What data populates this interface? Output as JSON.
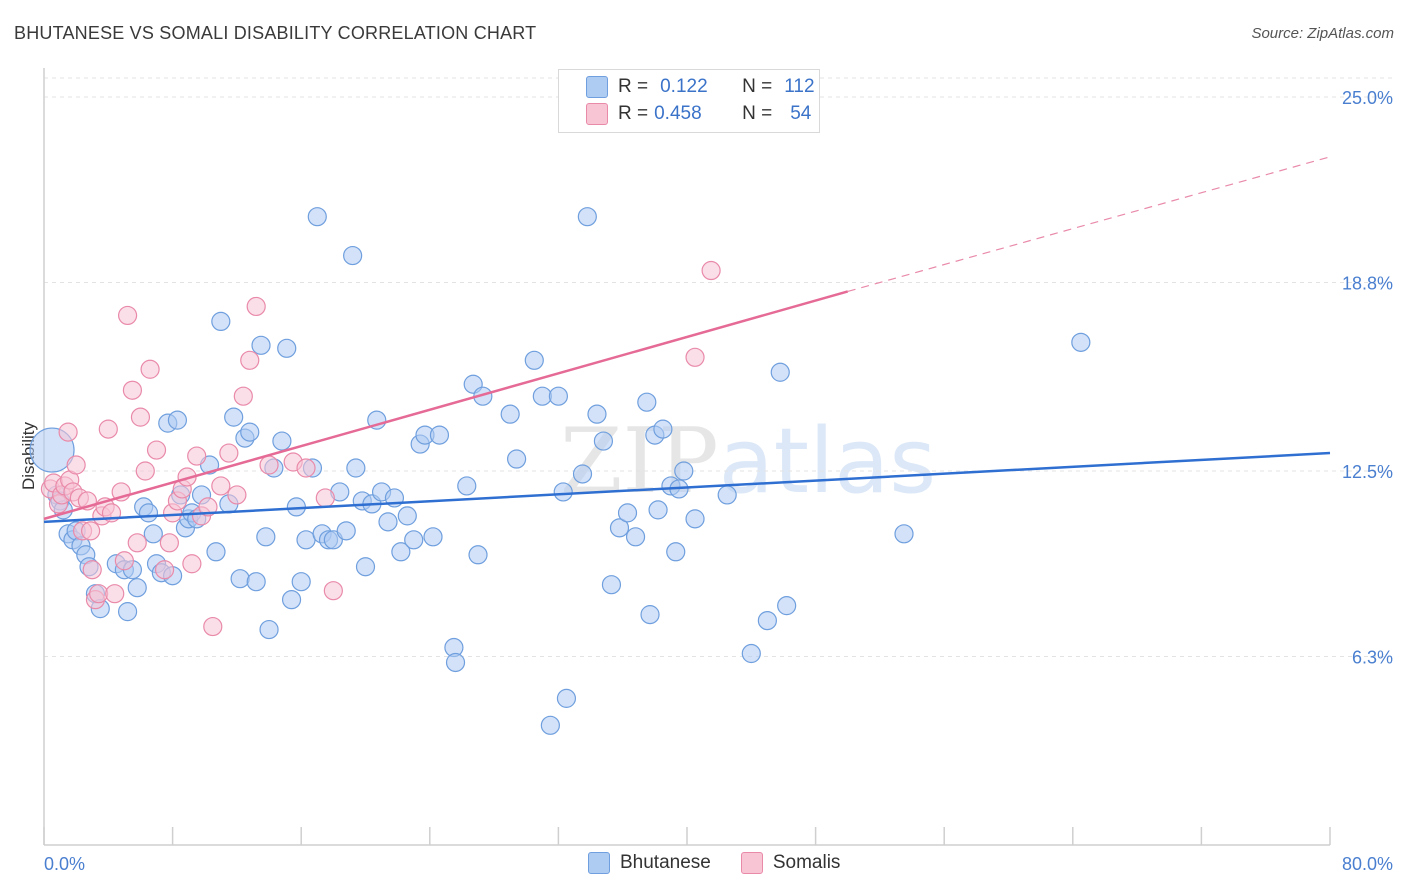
{
  "title": "BHUTANESE VS SOMALI DISABILITY CORRELATION CHART",
  "source": "Source: ZipAtlas.com",
  "watermark": "ZIPatlas",
  "legend": {
    "rows": [
      {
        "r_label": "R =",
        "r_value": "0.122",
        "n_label": "N =",
        "n_value": "112",
        "color": "#aecbf2",
        "border": "#6f9fde"
      },
      {
        "r_label": "R =",
        "r_value": "0.458",
        "n_label": "N =",
        "n_value": "54",
        "color": "#f8c5d5",
        "border": "#e98aa9"
      }
    ]
  },
  "bottom_legend": {
    "items": [
      {
        "label": "Bhutanese",
        "color": "#aecbf2",
        "border": "#6f9fde"
      },
      {
        "label": "Somalis",
        "color": "#f8c5d5",
        "border": "#e98aa9"
      }
    ]
  },
  "chart_data": {
    "type": "scatter",
    "title": "BHUTANESE VS SOMALI DISABILITY CORRELATION CHART",
    "xlabel": "",
    "ylabel": "Disability",
    "xlim": [
      0,
      80
    ],
    "ylim": [
      0,
      26.5
    ],
    "x_tick_labels": [
      "0.0%",
      "80.0%"
    ],
    "y_ticks": [
      6.3,
      12.5,
      18.8,
      25.0
    ],
    "y_tick_labels": [
      "6.3%",
      "12.5%",
      "18.8%",
      "25.0%"
    ],
    "grid": true,
    "series": [
      {
        "name": "Bhutanese",
        "color": "#6f9fde",
        "fill": "#aecbf2",
        "trend": {
          "x0": 0,
          "y0": 10.8,
          "x1": 80,
          "y1": 13.1
        },
        "points": [
          [
            0.5,
            13.2
          ],
          [
            0.8,
            11.7
          ],
          [
            1.0,
            11.5
          ],
          [
            1.2,
            11.2
          ],
          [
            1.5,
            10.4
          ],
          [
            1.8,
            10.2
          ],
          [
            2.0,
            10.5
          ],
          [
            2.3,
            10.0
          ],
          [
            2.6,
            9.7
          ],
          [
            2.8,
            9.3
          ],
          [
            3.2,
            8.4
          ],
          [
            3.5,
            7.9
          ],
          [
            4.5,
            9.4
          ],
          [
            5.0,
            9.2
          ],
          [
            5.2,
            7.8
          ],
          [
            5.5,
            9.2
          ],
          [
            5.8,
            8.6
          ],
          [
            6.2,
            11.3
          ],
          [
            6.5,
            11.1
          ],
          [
            6.8,
            10.4
          ],
          [
            7.0,
            9.4
          ],
          [
            7.3,
            9.1
          ],
          [
            7.7,
            14.1
          ],
          [
            8.0,
            9.0
          ],
          [
            8.3,
            14.2
          ],
          [
            8.5,
            11.7
          ],
          [
            8.8,
            10.6
          ],
          [
            9.0,
            10.9
          ],
          [
            9.2,
            11.1
          ],
          [
            9.5,
            10.9
          ],
          [
            9.8,
            11.7
          ],
          [
            10.3,
            12.7
          ],
          [
            10.7,
            9.8
          ],
          [
            11.0,
            17.5
          ],
          [
            11.5,
            11.4
          ],
          [
            11.8,
            14.3
          ],
          [
            12.2,
            8.9
          ],
          [
            12.5,
            13.6
          ],
          [
            12.8,
            13.8
          ],
          [
            13.2,
            8.8
          ],
          [
            13.5,
            16.7
          ],
          [
            13.8,
            10.3
          ],
          [
            14.0,
            7.2
          ],
          [
            14.3,
            12.6
          ],
          [
            14.8,
            13.5
          ],
          [
            15.1,
            16.6
          ],
          [
            15.4,
            8.2
          ],
          [
            15.7,
            11.3
          ],
          [
            16.0,
            8.8
          ],
          [
            16.3,
            10.2
          ],
          [
            16.7,
            12.6
          ],
          [
            17.0,
            21.0
          ],
          [
            17.3,
            10.4
          ],
          [
            17.7,
            10.2
          ],
          [
            18.0,
            10.2
          ],
          [
            18.4,
            11.8
          ],
          [
            18.8,
            10.5
          ],
          [
            19.2,
            19.7
          ],
          [
            19.4,
            12.6
          ],
          [
            19.8,
            11.5
          ],
          [
            20.0,
            9.3
          ],
          [
            20.4,
            11.4
          ],
          [
            20.7,
            14.2
          ],
          [
            21.0,
            11.8
          ],
          [
            21.4,
            10.8
          ],
          [
            21.8,
            11.6
          ],
          [
            22.2,
            9.8
          ],
          [
            22.6,
            11.0
          ],
          [
            23.0,
            10.2
          ],
          [
            23.4,
            13.4
          ],
          [
            23.7,
            13.7
          ],
          [
            24.2,
            10.3
          ],
          [
            24.6,
            13.7
          ],
          [
            25.5,
            6.6
          ],
          [
            25.6,
            6.1
          ],
          [
            26.3,
            12.0
          ],
          [
            26.7,
            15.4
          ],
          [
            27.0,
            9.7
          ],
          [
            27.3,
            15.0
          ],
          [
            29.0,
            14.4
          ],
          [
            29.4,
            12.9
          ],
          [
            30.5,
            16.2
          ],
          [
            31.0,
            15.0
          ],
          [
            32.0,
            15.0
          ],
          [
            32.3,
            11.8
          ],
          [
            32.5,
            4.9
          ],
          [
            31.5,
            4.0
          ],
          [
            33.5,
            12.4
          ],
          [
            33.8,
            21.0
          ],
          [
            34.4,
            14.4
          ],
          [
            34.8,
            13.5
          ],
          [
            35.3,
            8.7
          ],
          [
            35.8,
            10.6
          ],
          [
            36.3,
            11.1
          ],
          [
            36.8,
            10.3
          ],
          [
            37.5,
            14.8
          ],
          [
            37.7,
            7.7
          ],
          [
            38.0,
            13.7
          ],
          [
            38.2,
            11.2
          ],
          [
            38.5,
            13.9
          ],
          [
            39.0,
            12.0
          ],
          [
            39.3,
            9.8
          ],
          [
            39.5,
            11.9
          ],
          [
            39.8,
            12.5
          ],
          [
            40.5,
            10.9
          ],
          [
            42.5,
            11.7
          ],
          [
            44.0,
            6.4
          ],
          [
            45.0,
            7.5
          ],
          [
            46.2,
            8.0
          ],
          [
            45.8,
            15.8
          ],
          [
            53.5,
            10.4
          ],
          [
            64.5,
            16.8
          ]
        ]
      },
      {
        "name": "Somalis",
        "color": "#e98aa9",
        "fill": "#f8c5d5",
        "trend": {
          "x0": 0,
          "y0": 10.9,
          "x1": 50,
          "y1": 18.5,
          "dash_x1": 80,
          "dash_y1": 23.0
        },
        "points": [
          [
            0.4,
            11.9
          ],
          [
            0.6,
            12.1
          ],
          [
            0.9,
            11.4
          ],
          [
            1.1,
            11.7
          ],
          [
            1.3,
            12.0
          ],
          [
            1.6,
            12.2
          ],
          [
            1.8,
            11.8
          ],
          [
            2.0,
            12.7
          ],
          [
            2.2,
            11.6
          ],
          [
            2.4,
            10.5
          ],
          [
            2.7,
            11.5
          ],
          [
            2.9,
            10.5
          ],
          [
            3.2,
            8.2
          ],
          [
            3.4,
            8.4
          ],
          [
            3.6,
            11.0
          ],
          [
            3.8,
            11.3
          ],
          [
            4.0,
            13.9
          ],
          [
            4.2,
            11.1
          ],
          [
            4.4,
            8.4
          ],
          [
            4.8,
            11.8
          ],
          [
            5.0,
            9.5
          ],
          [
            5.2,
            17.7
          ],
          [
            5.5,
            15.2
          ],
          [
            5.8,
            10.1
          ],
          [
            6.0,
            14.3
          ],
          [
            6.3,
            12.5
          ],
          [
            6.6,
            15.9
          ],
          [
            7.0,
            13.2
          ],
          [
            7.5,
            9.2
          ],
          [
            7.8,
            10.1
          ],
          [
            8.0,
            11.1
          ],
          [
            8.3,
            11.5
          ],
          [
            8.6,
            11.9
          ],
          [
            8.9,
            12.3
          ],
          [
            9.2,
            9.4
          ],
          [
            9.5,
            13.0
          ],
          [
            9.8,
            11.0
          ],
          [
            10.2,
            11.3
          ],
          [
            10.5,
            7.3
          ],
          [
            11.0,
            12.0
          ],
          [
            11.5,
            13.1
          ],
          [
            12.0,
            11.7
          ],
          [
            12.4,
            15.0
          ],
          [
            12.8,
            16.2
          ],
          [
            13.2,
            18.0
          ],
          [
            14.0,
            12.7
          ],
          [
            15.5,
            12.8
          ],
          [
            16.3,
            12.6
          ],
          [
            17.5,
            11.6
          ],
          [
            18.0,
            8.5
          ],
          [
            1.5,
            13.8
          ],
          [
            3.0,
            9.2
          ],
          [
            40.5,
            16.3
          ],
          [
            41.5,
            19.2
          ]
        ]
      }
    ]
  }
}
